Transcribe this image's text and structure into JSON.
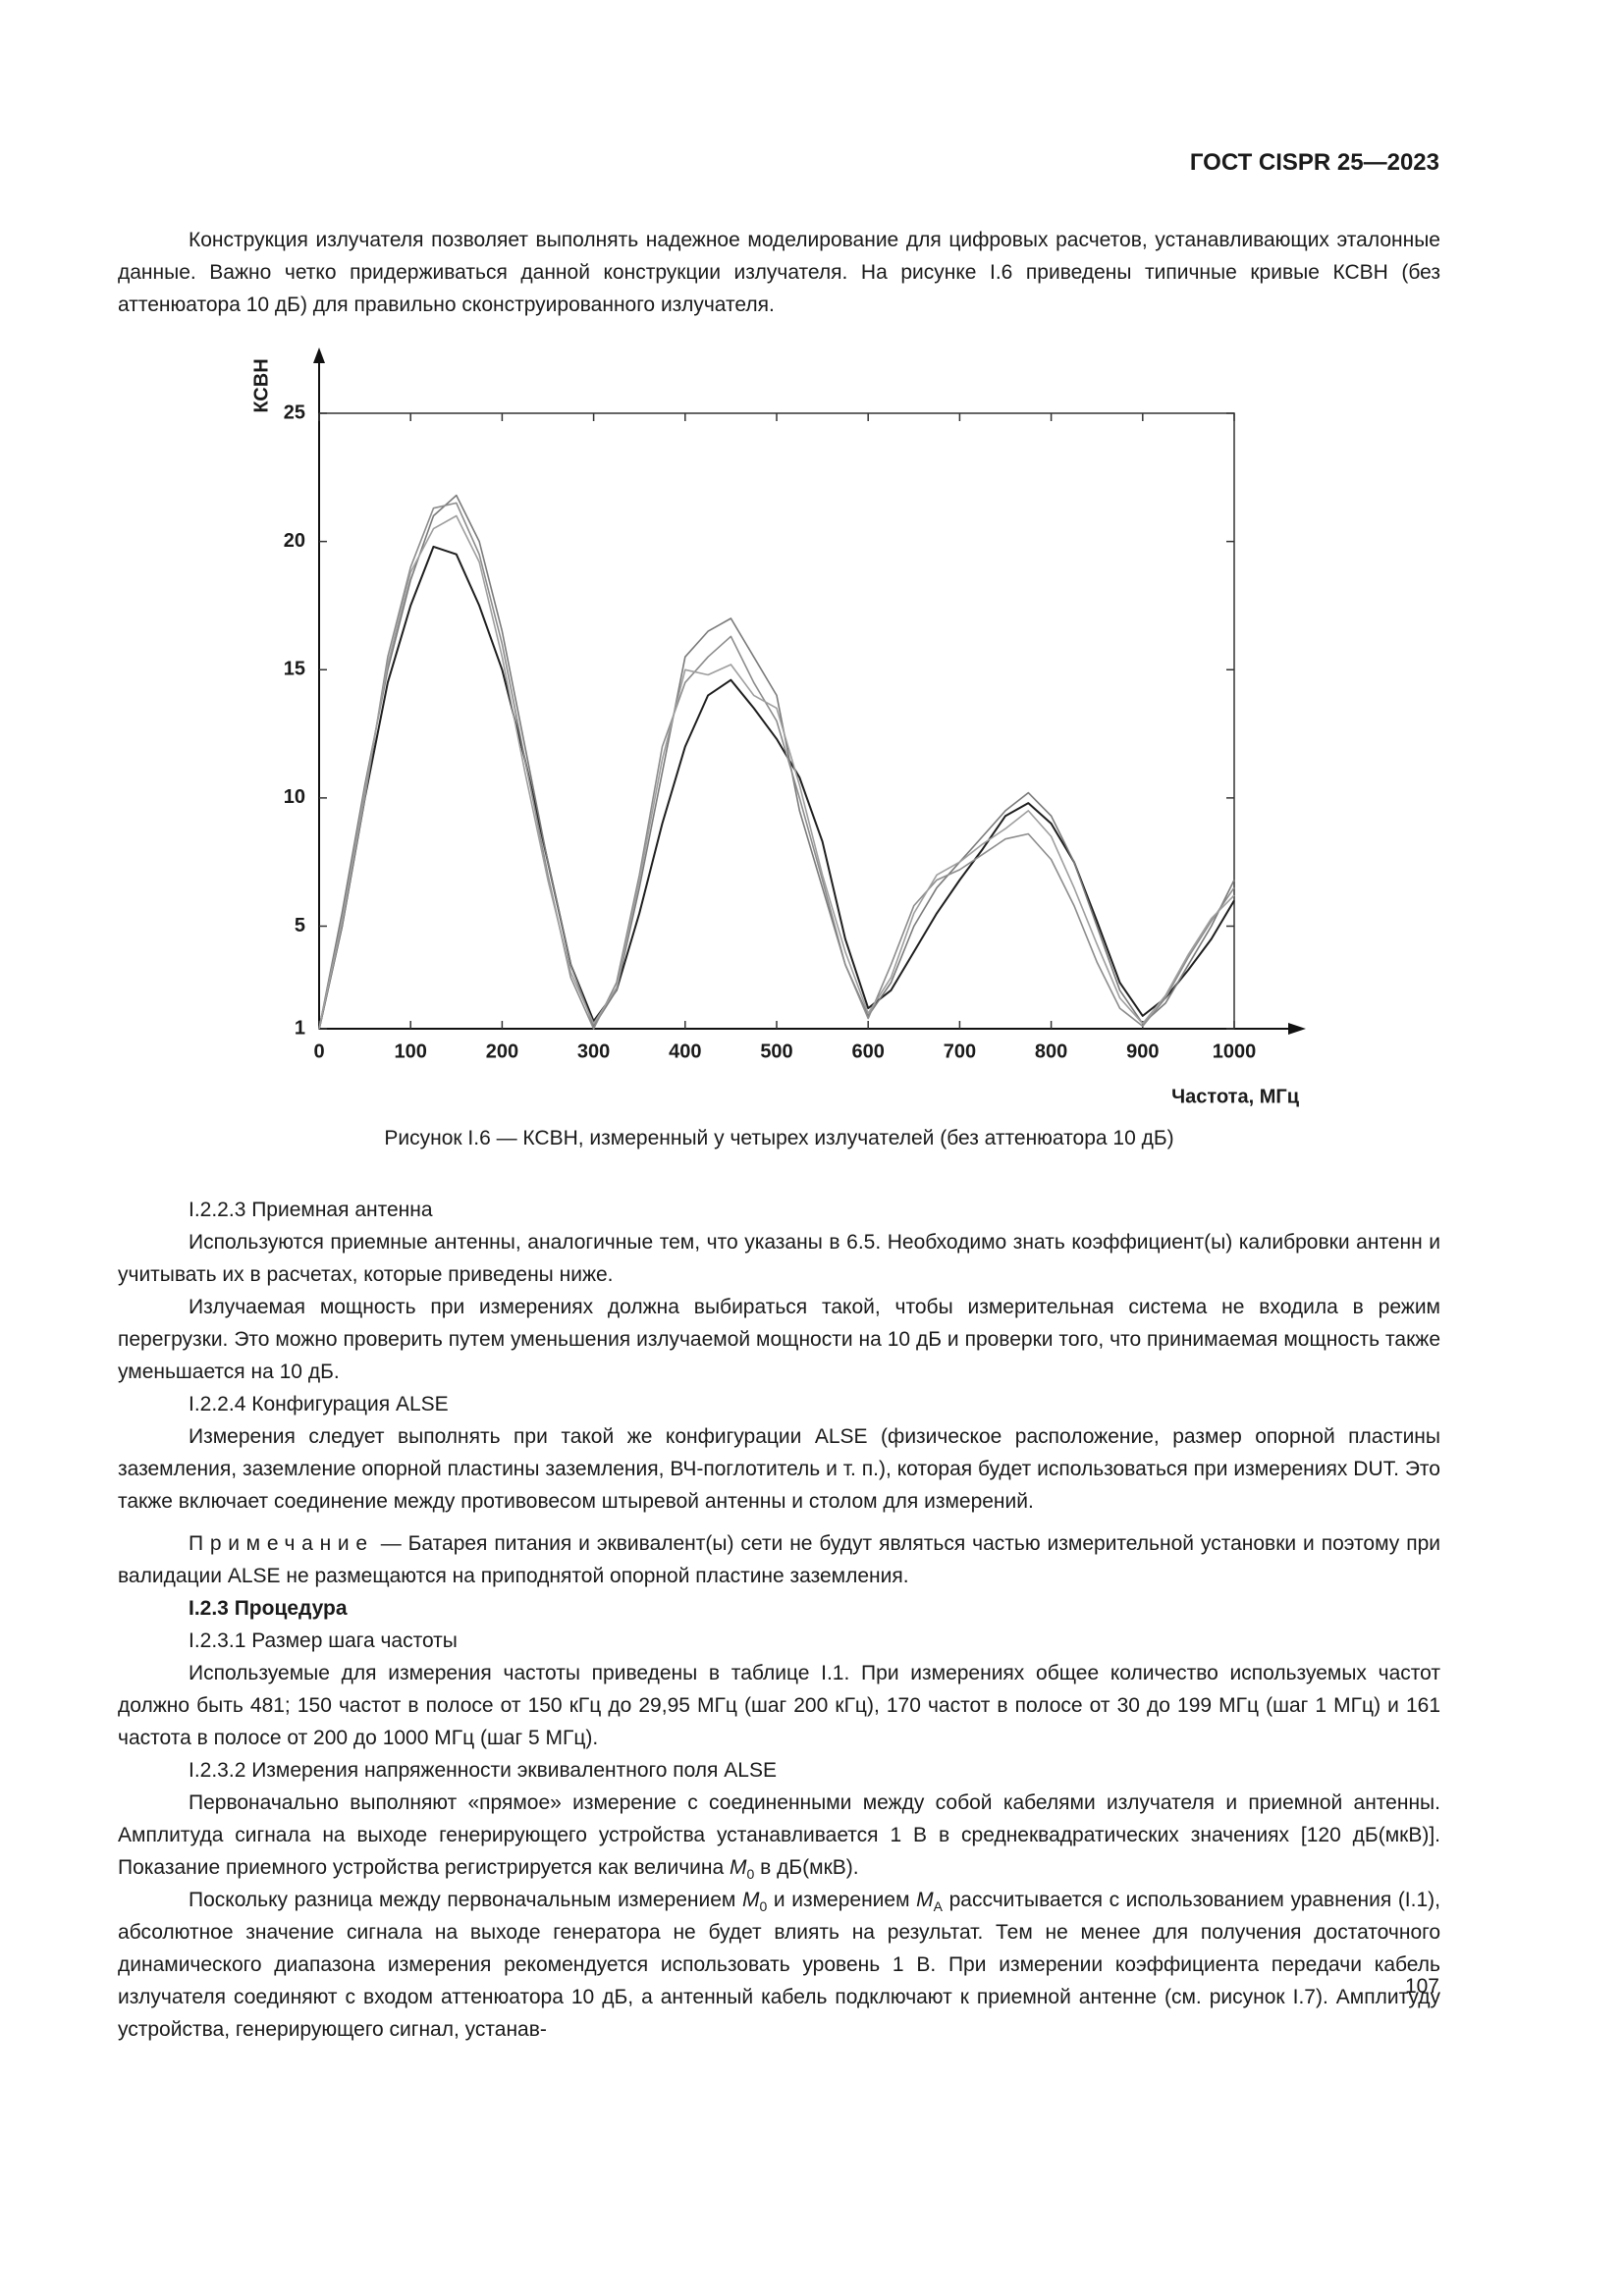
{
  "header": {
    "title": "ГОСТ CISPR 25—2023"
  },
  "intro": "Конструкция излучателя позволяет выполнять надежное моделирование для цифровых расчетов, устанавливающих эталонные данные. Важно четко придерживаться данной конструкции излучателя. На рисунке I.6 приведены типичные кривые КСВН (без аттенюатора 10 дБ) для правильно сконструированного излучателя.",
  "chart_data": {
    "type": "line",
    "x_label": "Частота, МГц",
    "y_label": "КСВН",
    "x": [
      0,
      25,
      50,
      75,
      100,
      125,
      150,
      175,
      200,
      225,
      250,
      275,
      300,
      325,
      350,
      375,
      400,
      425,
      450,
      475,
      500,
      525,
      550,
      575,
      600,
      625,
      650,
      675,
      700,
      725,
      750,
      775,
      800,
      825,
      850,
      875,
      900,
      925,
      950,
      975,
      1000
    ],
    "series": [
      {
        "color": "#1e1e1e",
        "values": [
          1,
          5,
          10,
          14.5,
          17.5,
          19.8,
          19.5,
          17.5,
          15,
          11.5,
          7.5,
          3.5,
          1.3,
          2.5,
          5.5,
          9,
          12,
          14,
          14.6,
          13.5,
          12.3,
          10.8,
          8.3,
          4.5,
          1.8,
          2.5,
          4,
          5.5,
          6.8,
          8,
          9.3,
          9.8,
          9,
          7.5,
          5.2,
          2.8,
          1.5,
          2.2,
          3.3,
          4.5,
          6
        ]
      },
      {
        "color": "#7a7a7a",
        "values": [
          1,
          5.5,
          10.5,
          15,
          18.5,
          21,
          21.8,
          20,
          16.5,
          12,
          7.5,
          3.5,
          1.1,
          2.5,
          6.5,
          11,
          15.5,
          16.5,
          17,
          15.5,
          14,
          9.5,
          6.5,
          3.5,
          1.5,
          2.8,
          5,
          6.5,
          7.5,
          8.5,
          9.5,
          10.2,
          9.3,
          7.5,
          5,
          2.5,
          1.2,
          2,
          3.5,
          5,
          6.8
        ]
      },
      {
        "color": "#8c8c8c",
        "values": [
          1,
          5,
          10,
          15.5,
          19,
          21.3,
          21.5,
          19.5,
          16,
          11.5,
          7,
          3,
          1,
          2.8,
          7,
          12,
          14.5,
          15.5,
          16.3,
          14.5,
          13,
          10,
          6.8,
          3.5,
          1.4,
          3.5,
          5.8,
          6.8,
          7.2,
          7.8,
          8.4,
          8.6,
          7.6,
          5.8,
          3.6,
          1.8,
          1.1,
          2.2,
          3.8,
          5.2,
          6.5
        ]
      },
      {
        "color": "#9e9e9e",
        "values": [
          1,
          5.2,
          10.3,
          15.2,
          18.8,
          20.5,
          21,
          19.2,
          15.5,
          11,
          6.8,
          3.2,
          1.2,
          2.6,
          6.8,
          11.5,
          15,
          14.8,
          15.2,
          14,
          13.5,
          10.5,
          7,
          4,
          1.6,
          3,
          5.5,
          7,
          7.5,
          8.2,
          8.8,
          9.5,
          8.5,
          6.5,
          4.3,
          2.2,
          1.2,
          2.3,
          3.9,
          5.3,
          6.2
        ]
      }
    ],
    "xlim": [
      0,
      1000
    ],
    "xticks": [
      0,
      100,
      200,
      300,
      400,
      500,
      600,
      700,
      800,
      900,
      1000
    ],
    "ylim": [
      1,
      25
    ],
    "yticks": [
      1,
      5,
      10,
      15,
      20,
      25
    ],
    "grid": false
  },
  "caption": "Рисунок I.6 — КСВН, измеренный у четырех излучателей (без аттенюатора 10 дБ)",
  "body": [
    {
      "text": "I.2.2.3 Приемная антенна"
    },
    {
      "text": "Используются приемные антенны, аналогичные тем, что указаны в 6.5. Необходимо знать коэффициент(ы) калибровки антенн и учитывать их в расчетах, которые приведены ниже."
    },
    {
      "text": "Излучаемая мощность при измерениях должна выбираться такой, чтобы измерительная система не входила в режим перегрузки. Это можно проверить путем уменьшения излучаемой мощности на 10 дБ и проверки того, что принимаемая мощность также уменьшается на 10 дБ."
    },
    {
      "text": "I.2.2.4 Конфигурация ALSE"
    },
    {
      "text": "Измерения следует выполнять при такой же конфигурации ALSE (физическое расположение, размер опорной пластины заземления, заземление опорной пластины заземления, ВЧ-поглотитель и т. п.), которая будет использоваться при измерениях DUT. Это также включает соединение между противовесом штыревой антенны и столом для измерений."
    },
    {
      "label": "Примечание",
      "text": " — Батарея питания и эквивалент(ы) сети не будут являться частью измерительной установки и поэтому при валидации ALSE не размещаются на приподнятой опорной пластине заземления."
    },
    {
      "text": "I.2.3 Процедура",
      "bold": true
    },
    {
      "text": "I.2.3.1 Размер шага частоты"
    },
    {
      "text": "Используемые для измерения частоты приведены в таблице I.1. При измерениях общее количество используемых частот должно быть 481; 150 частот в полосе от 150 кГц до 29,95 МГц (шаг 200 кГц), 170 частот в полосе от 30 до 199 МГц (шаг 1 МГц) и 161 частота в полосе от 200 до 1000 МГц (шаг 5 МГц)."
    },
    {
      "text": "I.2.3.2 Измерения напряженности эквивалентного поля ALSE"
    },
    {
      "runs": [
        "Первоначально выполняют «прямое» измерение с соединенными между собой кабелями излучателя и приемной антенны. Амплитуда сигнала на выходе генерирующего устройства устанавливается 1 В в среднеквадратических значениях [120 дБ(мкВ)]. Показание приемного устройства регистрируется как величина ",
        {
          "var": "M",
          "sub": "0"
        },
        " в дБ(мкВ)."
      ]
    },
    {
      "runs": [
        "Поскольку разница между первоначальным измерением ",
        {
          "var": "M",
          "sub": "0"
        },
        " и измерением ",
        {
          "var": "M",
          "sub": "A"
        },
        " рассчитывается с использованием уравнения (I.1), абсолютное значение сигнала на выходе генератора не будет влиять на результат. Тем не менее для получения достаточного динамического диапазона измерения рекомендуется использовать уровень 1 В. При измерении коэффициента передачи кабель излучателя соединяют с входом аттенюатора 10 дБ, а антенный кабель подключают к приемной антенне (см. рисунок I.7). Амплитуду устройства, генерирующего сигнал, устанав-"
      ]
    }
  ],
  "page_number": "107"
}
